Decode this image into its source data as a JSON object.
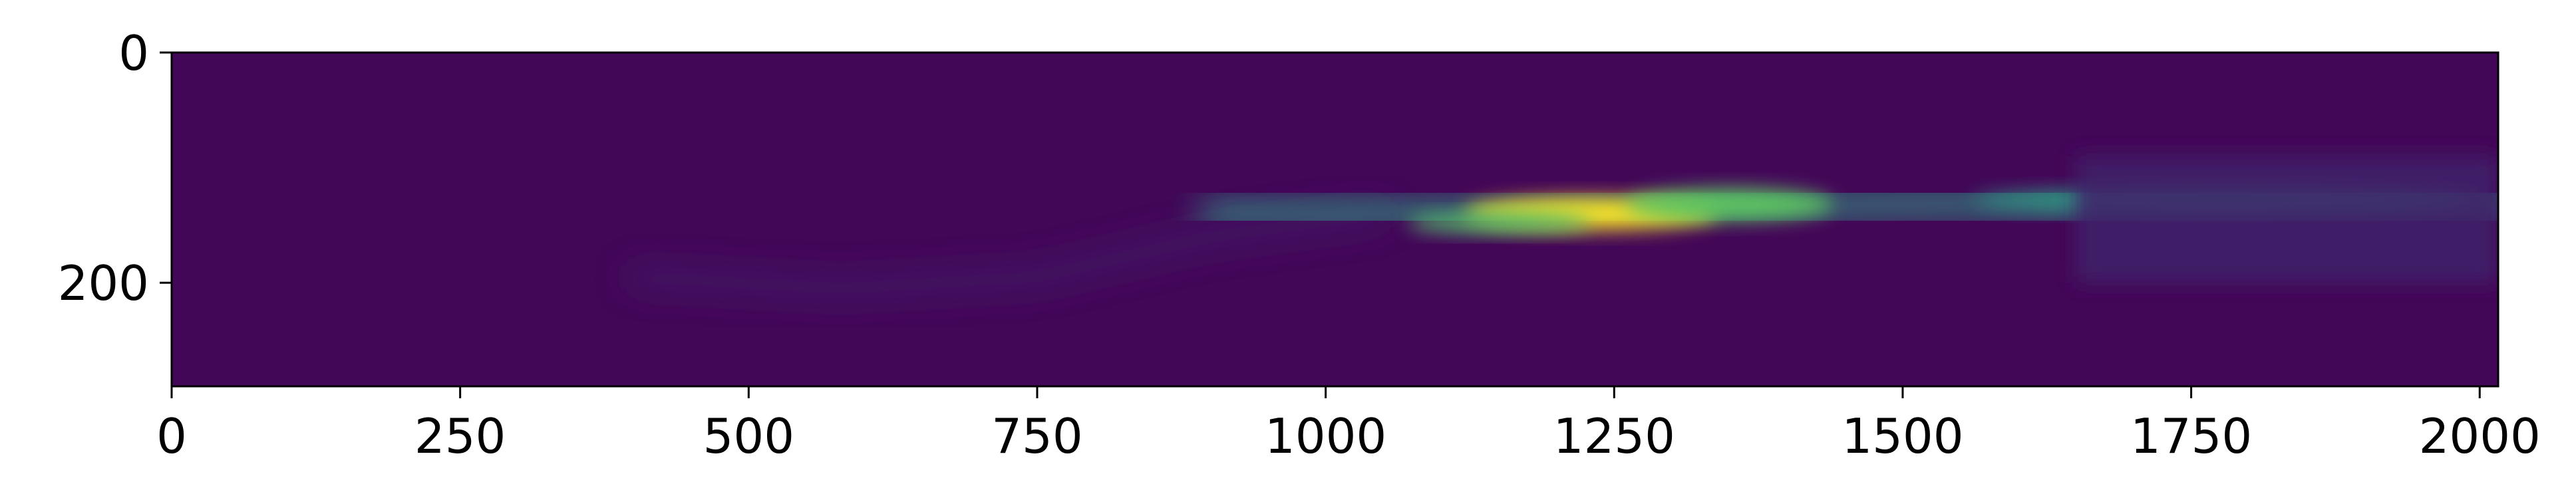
{
  "chart_data": {
    "type": "heatmap",
    "title": "",
    "xlabel": "",
    "ylabel": "",
    "xlim": [
      0,
      2016
    ],
    "ylim": [
      290,
      0
    ],
    "x_ticks": [
      0,
      250,
      500,
      750,
      1000,
      1250,
      1500,
      1750,
      2000
    ],
    "x_tick_labels": [
      "0",
      "250",
      "500",
      "750",
      "1000",
      "1250",
      "1500",
      "1750",
      "2000"
    ],
    "y_ticks": [
      0,
      200
    ],
    "y_tick_labels": [
      "0",
      "200"
    ],
    "colormap": "viridis",
    "background_value": 0.02,
    "intensity_features": [
      {
        "kind": "band",
        "x": [
          400,
          580,
          750,
          900,
          1050
        ],
        "y": [
          195,
          205,
          195,
          160,
          140
        ],
        "width": 12,
        "intensity": 0.12
      },
      {
        "kind": "band",
        "x": [
          900,
          1050,
          1200,
          1400,
          1650,
          2016
        ],
        "y": [
          140,
          140,
          138,
          133,
          130,
          128
        ],
        "width": 22,
        "intensity": 0.55
      },
      {
        "kind": "hotspot",
        "x": 1230,
        "y": 140,
        "rx": 110,
        "ry": 14,
        "intensity": 1.0
      },
      {
        "kind": "hotspot",
        "x": 1350,
        "y": 132,
        "rx": 90,
        "ry": 14,
        "intensity": 0.75
      },
      {
        "kind": "hotspot",
        "x": 1150,
        "y": 148,
        "rx": 80,
        "ry": 9,
        "intensity": 0.7
      },
      {
        "kind": "hotspot",
        "x": 1780,
        "y": 128,
        "rx": 220,
        "ry": 10,
        "intensity": 0.55
      },
      {
        "kind": "region",
        "x": [
          1650,
          2016
        ],
        "y": [
          90,
          200
        ],
        "intensity": 0.1
      }
    ]
  }
}
